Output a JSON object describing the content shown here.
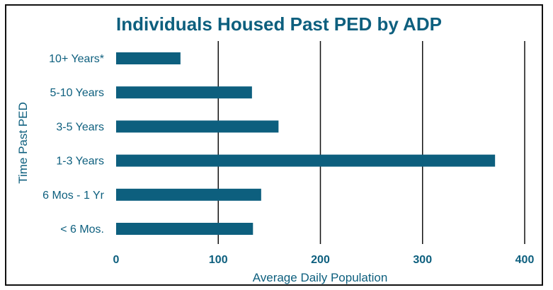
{
  "chart_data": {
    "type": "bar",
    "orientation": "horizontal",
    "title": "Individuals Housed Past PED by ADP",
    "xlabel": "Average Daily Population",
    "ylabel": "Time Past PED",
    "categories": [
      "10+ Years*",
      "5-10 Years",
      "3-5 Years",
      "1-3 Years",
      "6 Mos - 1 Yr",
      "< 6 Mos."
    ],
    "values": [
      63,
      133,
      159,
      371,
      142,
      134
    ],
    "xlim": [
      0,
      400
    ],
    "xticks": [
      "0",
      "100",
      "200",
      "300",
      "400"
    ],
    "grid": "vertical",
    "legend": "none"
  },
  "colors": {
    "bar": "#0d5f7e",
    "text": "#0d5f7e",
    "grid": "#111111"
  }
}
